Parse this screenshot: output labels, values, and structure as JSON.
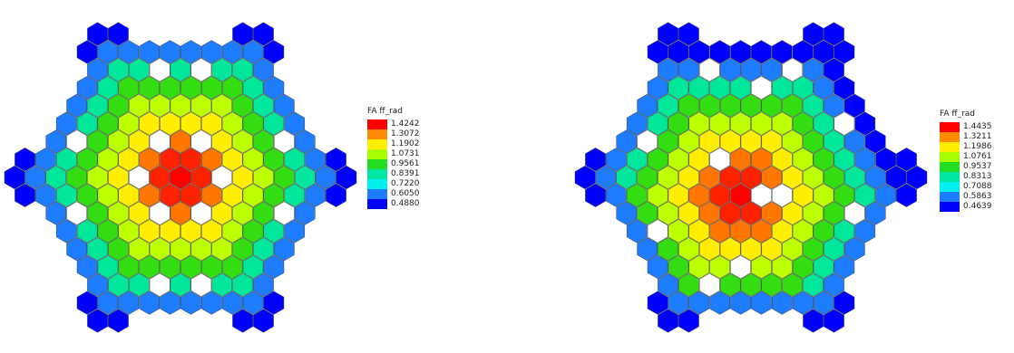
{
  "color_scale": {
    "levels": [
      "#0000ff",
      "#1e7cff",
      "#00e6ff",
      "#00e69a",
      "#33dd11",
      "#bbff00",
      "#ffee00",
      "#ffaa00",
      "#ff7700",
      "#ff2200",
      "#ff0000"
    ],
    "missing_color": "#ffffff"
  },
  "maps": [
    {
      "title": "FA ff_rad",
      "legend": [
        {
          "label": "1.4242",
          "color": "#ff0000"
        },
        {
          "label": "1.3072",
          "color": "#ff8c00"
        },
        {
          "label": "1.1902",
          "color": "#ffee00"
        },
        {
          "label": "1.0731",
          "color": "#a8ff00"
        },
        {
          "label": "0.9561",
          "color": "#22dd22"
        },
        {
          "label": "0.8391",
          "color": "#00e6a0"
        },
        {
          "label": "0.7220",
          "color": "#00f0f0"
        },
        {
          "label": "0.6050",
          "color": "#1e7cff"
        },
        {
          "label": "0.4880",
          "color": "#0000ff"
        }
      ]
    },
    {
      "title": "FA ff_rad",
      "legend": [
        {
          "label": "1.4435",
          "color": "#ff0000"
        },
        {
          "label": "1.3211",
          "color": "#ff8c00"
        },
        {
          "label": "1.1986",
          "color": "#ffee00"
        },
        {
          "label": "1.0761",
          "color": "#a8ff00"
        },
        {
          "label": "0.9537",
          "color": "#22dd22"
        },
        {
          "label": "0.8313",
          "color": "#00e6a0"
        },
        {
          "label": "0.7088",
          "color": "#00f0f0"
        },
        {
          "label": "0.5863",
          "color": "#1e7cff"
        },
        {
          "label": "0.4639",
          "color": "#0000ff"
        }
      ]
    }
  ]
}
